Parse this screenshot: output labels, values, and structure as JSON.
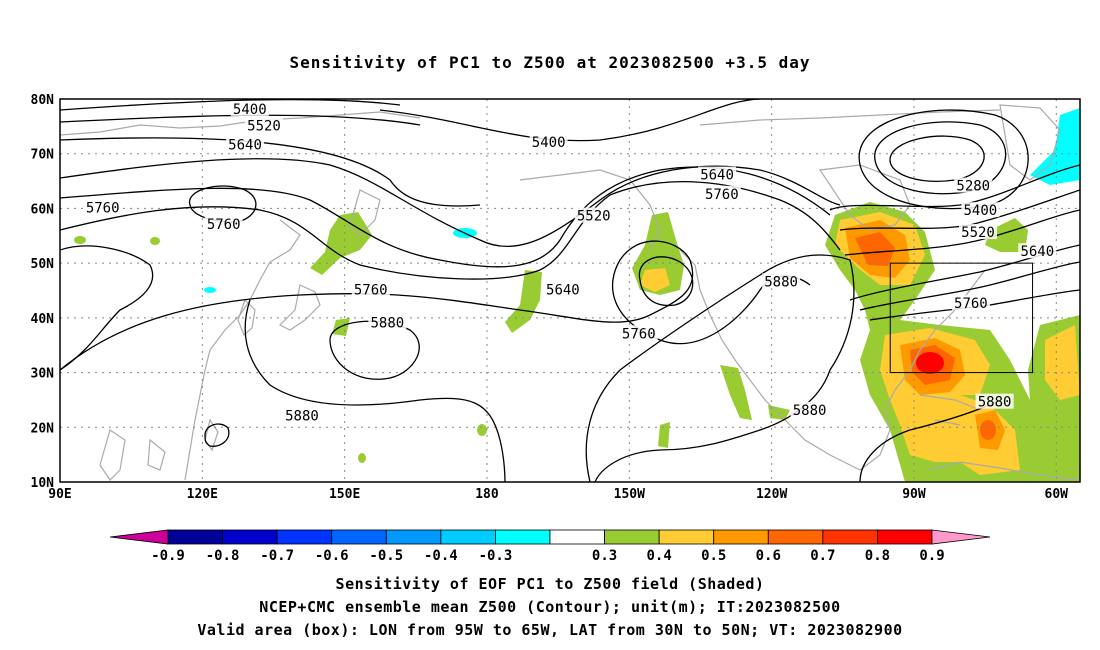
{
  "title": "Sensitivity of PC1 to Z500 at 2023082500 +3.5 day",
  "map": {
    "lon_ticks": [
      "90E",
      "120E",
      "150E",
      "180",
      "150W",
      "120W",
      "90W",
      "60W"
    ],
    "lat_ticks": [
      "80N",
      "70N",
      "60N",
      "50N",
      "40N",
      "30N",
      "20N",
      "10N"
    ],
    "lon_range": [
      90,
      305
    ],
    "lat_range": [
      10,
      80
    ],
    "valid_box": {
      "lon": [
        265,
        295
      ],
      "lat": [
        30,
        50
      ]
    },
    "contour_labels": [
      {
        "text": "5400",
        "lon": 130,
        "lat": 78
      },
      {
        "text": "5520",
        "lon": 133,
        "lat": 75
      },
      {
        "text": "5640",
        "lon": 129,
        "lat": 71.5
      },
      {
        "text": "5400",
        "lon": 193,
        "lat": 72
      },
      {
        "text": "5640",
        "lon": 228.5,
        "lat": 66
      },
      {
        "text": "5760",
        "lon": 229.5,
        "lat": 62.5
      },
      {
        "text": "5520",
        "lon": 202.5,
        "lat": 58.5
      },
      {
        "text": "5760",
        "lon": 99,
        "lat": 60
      },
      {
        "text": "5760",
        "lon": 124.5,
        "lat": 57
      },
      {
        "text": "5760",
        "lon": 155.5,
        "lat": 45
      },
      {
        "text": "5880",
        "lon": 159,
        "lat": 39
      },
      {
        "text": "5640",
        "lon": 196,
        "lat": 45
      },
      {
        "text": "5760",
        "lon": 212,
        "lat": 37
      },
      {
        "text": "5880",
        "lon": 242,
        "lat": 46.5
      },
      {
        "text": "5280",
        "lon": 282.5,
        "lat": 64
      },
      {
        "text": "5400",
        "lon": 284,
        "lat": 59.5
      },
      {
        "text": "5520",
        "lon": 283.5,
        "lat": 55.5
      },
      {
        "text": "5640",
        "lon": 296,
        "lat": 52
      },
      {
        "text": "5760",
        "lon": 282,
        "lat": 42.5
      },
      {
        "text": "5880",
        "lon": 287,
        "lat": 24.5
      },
      {
        "text": "5880",
        "lon": 141,
        "lat": 22
      },
      {
        "text": "5880",
        "lon": 248,
        "lat": 23
      }
    ],
    "shading_colors": {
      "cyan": "#00ffff",
      "green": "#99cc33",
      "yellow": "#ffcc33",
      "orange": "#ff9900",
      "dark_orange": "#ff6600",
      "red": "#ff0000"
    }
  },
  "colorbar": {
    "labels": [
      "-0.9",
      "-0.8",
      "-0.7",
      "-0.6",
      "-0.5",
      "-0.4",
      "-0.3",
      "0.3",
      "0.4",
      "0.5",
      "0.6",
      "0.7",
      "0.8",
      "0.9"
    ],
    "colors": [
      "#cc0099",
      "#000099",
      "#0000cc",
      "#0033ff",
      "#0066ff",
      "#0099ff",
      "#00ccff",
      "#00ffff",
      "#ffffff",
      "#99cc33",
      "#ffcc33",
      "#ff9900",
      "#ff6600",
      "#ff3300",
      "#ff0000",
      "#ff99cc"
    ]
  },
  "captions": [
    "Sensitivity of EOF PC1 to Z500 field (Shaded)",
    "NCEP+CMC ensemble mean Z500 (Contour); unit(m); IT:2023082500",
    "Valid area (box): LON from 95W to 65W, LAT from 30N to 50N; VT: 2023082900"
  ]
}
